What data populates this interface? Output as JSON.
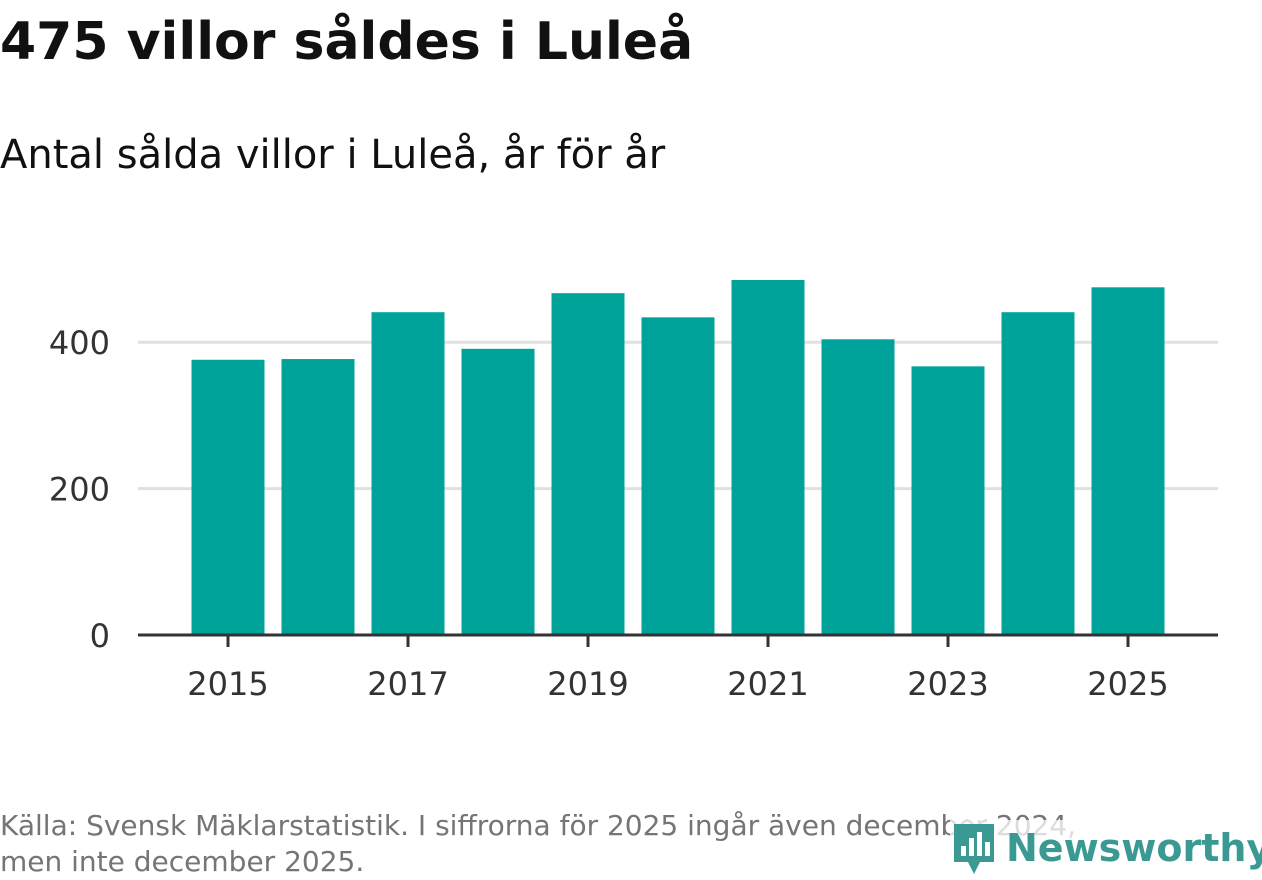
{
  "header": {
    "title": "475 villor såldes i Luleå",
    "subtitle": "Antal sålda villor i Luleå, år för år"
  },
  "chart_data": {
    "type": "bar",
    "title": "475 villor såldes i Luleå",
    "subtitle": "Antal sålda villor i Luleå, år för år",
    "categories": [
      "2015",
      "2016",
      "2017",
      "2018",
      "2019",
      "2020",
      "2021",
      "2022",
      "2023",
      "2024",
      "2025"
    ],
    "values": [
      376,
      377,
      441,
      391,
      467,
      434,
      485,
      404,
      367,
      441,
      475
    ],
    "x_tick_labels": [
      "2015",
      "2017",
      "2019",
      "2021",
      "2023",
      "2025"
    ],
    "y_ticks": [
      0,
      200,
      400
    ],
    "ylim": [
      0,
      485
    ],
    "xlabel": "",
    "ylabel": "",
    "grid": true,
    "legend": "none",
    "bar_color": "#00a39a"
  },
  "footer": {
    "source_line1": "Källa: Svensk Mäklarstatistik. I siffrorna för 2025 ingår även december 2024,",
    "source_line2": "men inte december 2025."
  },
  "brand": {
    "name": "Newsworthy",
    "color": "#3a9a93"
  }
}
